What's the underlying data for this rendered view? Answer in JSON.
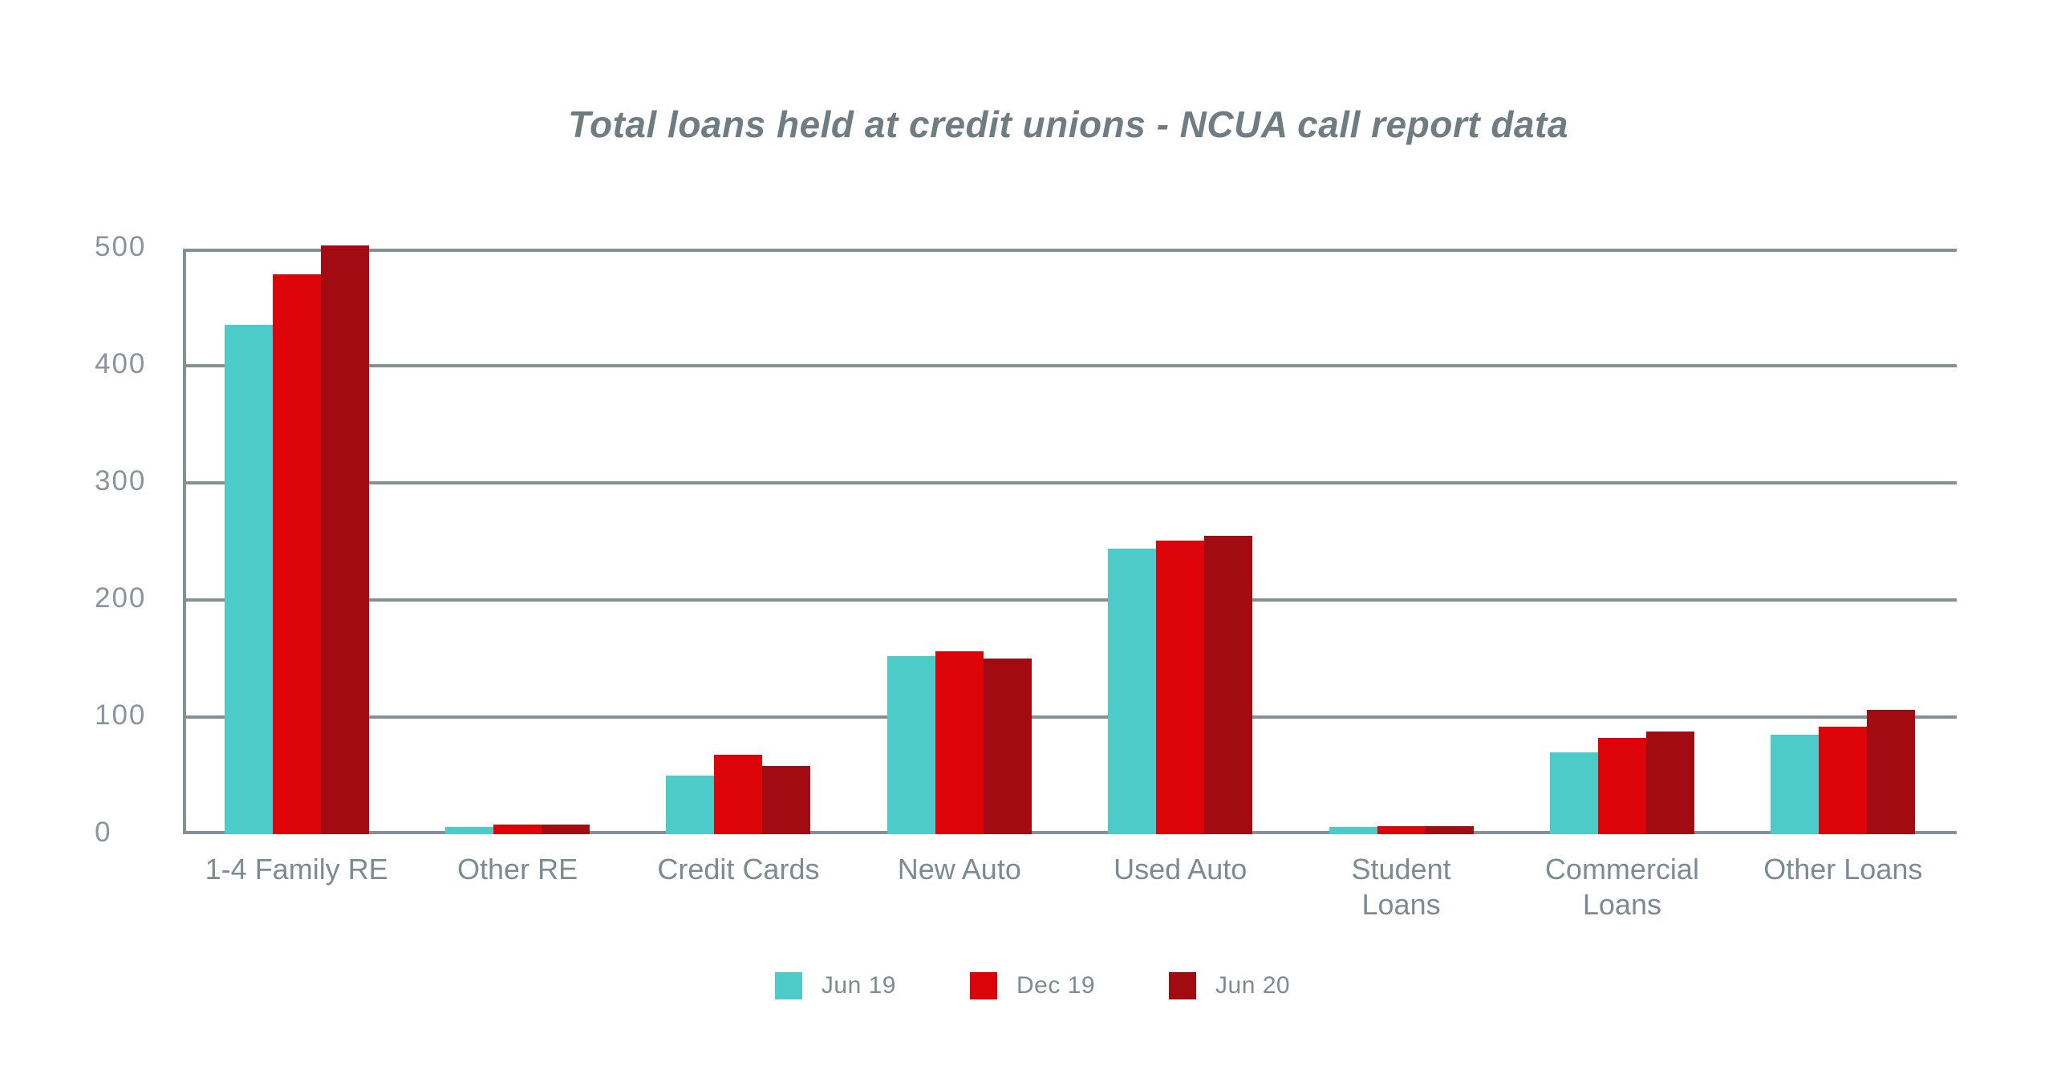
{
  "title": "Total loans held at credit unions - NCUA call report data",
  "colors": {
    "background": "#ffffff",
    "title_text": "#6F7D83",
    "axis_and_grid": "#848F96",
    "tick_label_text": "#8A949A",
    "category_label_text": "#7D8A90",
    "legend_label_text": "#7D8A90",
    "series_jun19": "#4DCBC8",
    "series_dec19": "#DD0409",
    "series_jun20": "#A20B12"
  },
  "chart_data": {
    "type": "bar",
    "title": "Total loans held at credit unions - NCUA call report data",
    "categories": [
      "1-4 Family RE",
      "Other RE",
      "Credit Cards",
      "New Auto",
      "Used Auto",
      "Student\nLoans",
      "Commercial\nLoans",
      "Other Loans"
    ],
    "series": [
      {
        "name": "Jun 19",
        "color": "#4DCBC8",
        "values": [
          435,
          6,
          50,
          152,
          244,
          6,
          70,
          85
        ]
      },
      {
        "name": "Dec 19",
        "color": "#DD0409",
        "values": [
          478,
          8,
          68,
          156,
          251,
          7,
          82,
          92
        ]
      },
      {
        "name": "Jun 20",
        "color": "#A20B12",
        "values": [
          503,
          8,
          58,
          150,
          255,
          7,
          88,
          106
        ]
      }
    ],
    "xlabel": "",
    "ylabel": "",
    "y_ticks": [
      500,
      400,
      300,
      200,
      100,
      0
    ],
    "ylim": [
      0,
      500
    ],
    "grid": "horizontal",
    "legend_position": "bottom",
    "legend_items": [
      "Jun 19",
      "Dec 19",
      "Jun 20"
    ]
  }
}
